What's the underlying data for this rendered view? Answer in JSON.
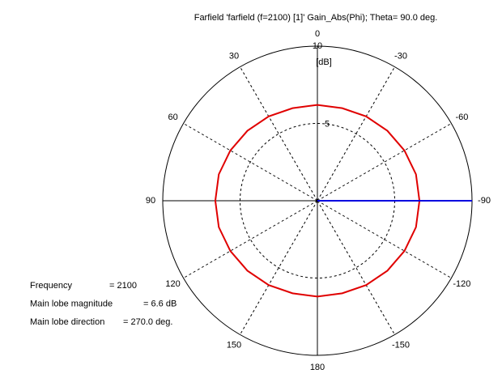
{
  "chart_data": {
    "type": "polar",
    "title": "Farfield 'farfield (f=2100) [1]' Gain_Abs(Phi); Theta=  90.0 deg.",
    "r_label": "[dB]",
    "rlim": [
      0,
      10
    ],
    "rticks": [
      5,
      10
    ],
    "angle_ticks": [
      0,
      30,
      60,
      90,
      120,
      150,
      180,
      -150,
      -120,
      -90,
      -60,
      -30
    ],
    "series": [
      {
        "color": "#e00000",
        "theta": [
          0,
          15,
          30,
          45,
          60,
          75,
          90,
          105,
          120,
          135,
          150,
          165,
          180,
          195,
          210,
          225,
          240,
          255,
          270,
          285,
          300,
          315,
          330,
          345
        ],
        "values": [
          6.2,
          6.2,
          6.3,
          6.4,
          6.5,
          6.6,
          6.6,
          6.6,
          6.5,
          6.4,
          6.3,
          6.2,
          6.2,
          6.2,
          6.3,
          6.4,
          6.5,
          6.6,
          6.6,
          6.6,
          6.5,
          6.4,
          6.3,
          6.2
        ]
      }
    ],
    "info": [
      {
        "label": "Frequency",
        "value": 2100,
        "value_label": "= 2100"
      },
      {
        "label": "Main lobe magnitude",
        "value": 6.6,
        "value_label": "=  6.6 dB"
      },
      {
        "label": "Main lobe direction",
        "value": 270,
        "value_label": "= 270.0 deg.",
        "color": "#0000e0"
      }
    ]
  }
}
